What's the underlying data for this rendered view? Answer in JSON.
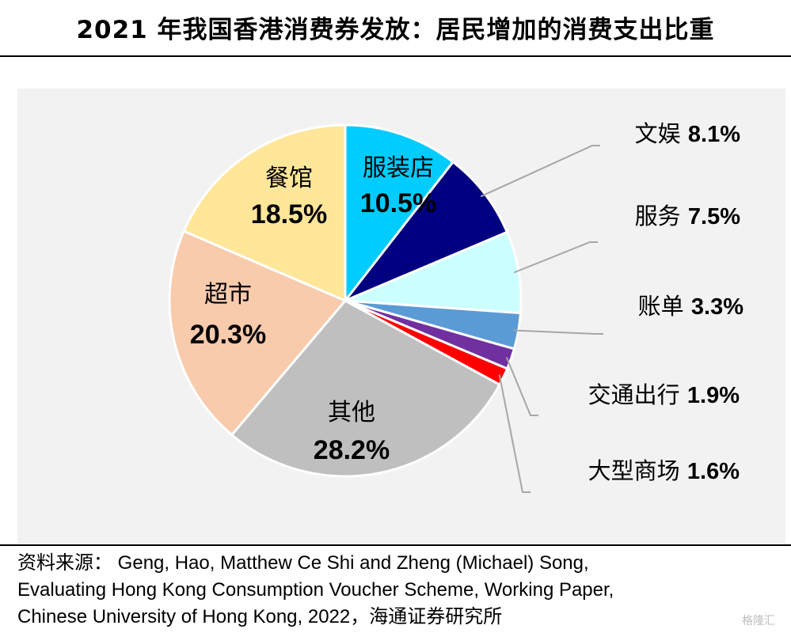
{
  "title": "2021 年我国香港消费券发放：居民增加的消费支出比重",
  "chart_data": {
    "type": "pie",
    "title": "2021 年我国香港消费券发放：居民增加的消费支出比重",
    "unit": "%",
    "slices": [
      {
        "label": "服装店",
        "value": 10.5,
        "display": "10.5%",
        "color": "#00CCFF",
        "label_placement": "inside"
      },
      {
        "label": "文娱",
        "value": 8.1,
        "display": "8.1%",
        "color": "#000080",
        "label_placement": "outside"
      },
      {
        "label": "服务",
        "value": 7.5,
        "display": "7.5%",
        "color": "#CCFFFF",
        "label_placement": "outside"
      },
      {
        "label": "账单",
        "value": 3.3,
        "display": "3.3%",
        "color": "#5B9BD5",
        "label_placement": "outside"
      },
      {
        "label": "交通出行",
        "value": 1.9,
        "display": "1.9%",
        "color": "#7030A0",
        "label_placement": "outside"
      },
      {
        "label": "大型商场",
        "value": 1.6,
        "display": "1.6%",
        "color": "#FF0000",
        "label_placement": "outside"
      },
      {
        "label": "其他",
        "value": 28.2,
        "display": "28.2%",
        "color": "#BFBFBF",
        "label_placement": "inside"
      },
      {
        "label": "超市",
        "value": 20.3,
        "display": "20.3%",
        "color": "#F8CBAD",
        "label_placement": "inside"
      },
      {
        "label": "餐馆",
        "value": 18.5,
        "display": "18.5%",
        "color": "#FFE699",
        "label_placement": "inside"
      }
    ],
    "start_angle_deg": 0,
    "direction": "clockwise",
    "leader_line_color": "#A6A6A6"
  },
  "source": {
    "label": "资料来源：",
    "line1": "Geng, Hao, Matthew Ce Shi and Zheng (Michael) Song,",
    "line2": "Evaluating Hong Kong Consumption Voucher Scheme, Working Paper,",
    "line3": "Chinese University of Hong Kong, 2022，海通证券研究所"
  },
  "watermark": "格隆汇"
}
